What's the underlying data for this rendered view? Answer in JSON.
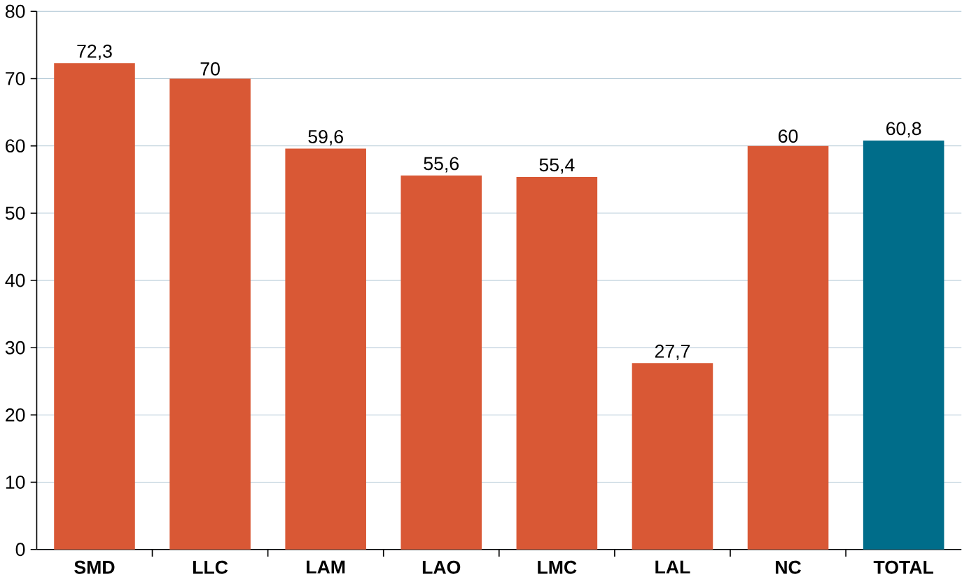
{
  "chart_data": {
    "type": "bar",
    "categories": [
      "SMD",
      "LLC",
      "LAM",
      "LAO",
      "LMC",
      "LAL",
      "NC",
      "TOTAL"
    ],
    "values": [
      72.3,
      70,
      59.6,
      55.6,
      55.4,
      27.7,
      60,
      60.8
    ],
    "value_labels": [
      "72,3",
      "70",
      "59,6",
      "55,6",
      "55,4",
      "27,7",
      "60",
      "60,8"
    ],
    "colors": [
      "#d95835",
      "#d95835",
      "#d95835",
      "#d95835",
      "#d95835",
      "#d95835",
      "#d95835",
      "#006d8a"
    ],
    "ylim": [
      0,
      80
    ],
    "yticks": [
      0,
      10,
      20,
      30,
      40,
      50,
      60,
      70,
      80
    ],
    "grid": "y"
  }
}
